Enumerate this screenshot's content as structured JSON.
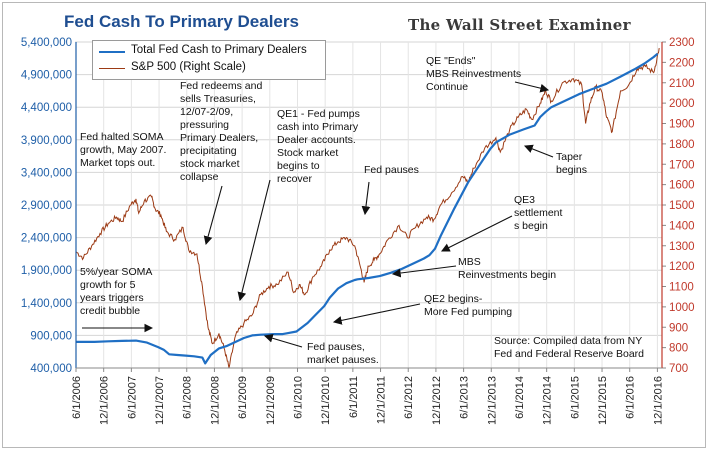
{
  "brand_text": "The Wall Street Examiner",
  "chart_data": {
    "type": "line",
    "title": "Fed Cash To Primary Dealers",
    "grid": true,
    "legend_position": "top-left",
    "x_tick_labels": [
      "6/1/2006",
      "12/1/2006",
      "6/1/2007",
      "12/1/2007",
      "6/1/2008",
      "12/1/2008",
      "6/1/2009",
      "12/1/2009",
      "6/1/2010",
      "12/1/2010",
      "6/1/2011",
      "12/1/2011",
      "6/1/2012",
      "12/1/2012",
      "6/1/2013",
      "12/1/2013",
      "6/1/2014",
      "12/1/2014",
      "6/1/2015",
      "12/1/2015",
      "6/1/2016",
      "12/1/2016"
    ],
    "x_range": [
      2006.417,
      2017.0
    ],
    "y_left": {
      "range": [
        400000,
        5400000
      ],
      "ticks": [
        400000,
        900000,
        1400000,
        1900000,
        2400000,
        2900000,
        3400000,
        3900000,
        4400000,
        4900000,
        5400000
      ],
      "tick_labels": [
        "400,000",
        "900,000",
        "1,400,000",
        "1,900,000",
        "2,400,000",
        "2,900,000",
        "3,400,000",
        "3,900,000",
        "4,400,000",
        "4,900,000",
        "5,400,000"
      ],
      "color": "#1f5fa8"
    },
    "y_right": {
      "range": [
        700,
        2300
      ],
      "ticks": [
        700,
        800,
        900,
        1000,
        1100,
        1200,
        1300,
        1400,
        1500,
        1600,
        1700,
        1800,
        1900,
        2000,
        2100,
        2200,
        2300
      ],
      "tick_labels": [
        "700",
        "800",
        "900",
        "1000",
        "1100",
        "1200",
        "1300",
        "1400",
        "1500",
        "1600",
        "1700",
        "1800",
        "1900",
        "2000",
        "2100",
        "2200",
        "2300"
      ],
      "color": "#c0392b"
    },
    "series": [
      {
        "name": "Total Fed Cash to Primary Dealers",
        "axis": "left",
        "color": "#1f6fc4",
        "x": [
          2006.42,
          2006.75,
          2007.0,
          2007.25,
          2007.5,
          2007.7,
          2007.9,
          2008.0,
          2008.1,
          2008.25,
          2008.4,
          2008.55,
          2008.7,
          2008.75,
          2008.85,
          2009.0,
          2009.15,
          2009.3,
          2009.45,
          2009.6,
          2009.75,
          2009.9,
          2010.0,
          2010.15,
          2010.25,
          2010.4,
          2010.6,
          2010.75,
          2010.9,
          2011.0,
          2011.15,
          2011.3,
          2011.45,
          2011.5,
          2011.7,
          2011.9,
          2012.1,
          2012.3,
          2012.5,
          2012.7,
          2012.8,
          2012.9,
          2013.0,
          2013.25,
          2013.5,
          2013.75,
          2013.9,
          2014.0,
          2014.25,
          2014.5,
          2014.7,
          2014.8,
          2014.9,
          2015.0,
          2015.25,
          2015.5,
          2015.75,
          2016.0,
          2016.25,
          2016.5,
          2016.7,
          2016.85,
          2016.92
        ],
        "values": [
          800000,
          800000,
          810000,
          815000,
          820000,
          790000,
          720000,
          680000,
          610000,
          600000,
          590000,
          580000,
          560000,
          470000,
          600000,
          700000,
          740000,
          800000,
          860000,
          900000,
          910000,
          915000,
          920000,
          920000,
          935000,
          960000,
          1090000,
          1220000,
          1350000,
          1480000,
          1620000,
          1700000,
          1750000,
          1760000,
          1780000,
          1810000,
          1860000,
          1920000,
          2000000,
          2080000,
          2130000,
          2230000,
          2420000,
          2850000,
          3250000,
          3570000,
          3760000,
          3860000,
          3980000,
          4060000,
          4120000,
          4250000,
          4330000,
          4400000,
          4500000,
          4600000,
          4680000,
          4760000,
          4870000,
          4980000,
          5080000,
          5170000,
          5220000
        ]
      },
      {
        "name": "S&P 500 (Right Scale)",
        "axis": "right",
        "color": "#9c3a14",
        "x": [
          2006.42,
          2006.55,
          2006.7,
          2006.85,
          2007.0,
          2007.15,
          2007.25,
          2007.4,
          2007.5,
          2007.55,
          2007.65,
          2007.78,
          2007.85,
          2007.95,
          2008.05,
          2008.2,
          2008.35,
          2008.45,
          2008.6,
          2008.7,
          2008.8,
          2008.88,
          2009.0,
          2009.1,
          2009.18,
          2009.3,
          2009.45,
          2009.6,
          2009.75,
          2009.9,
          2010.05,
          2010.25,
          2010.35,
          2010.45,
          2010.55,
          2010.7,
          2010.85,
          2011.0,
          2011.15,
          2011.3,
          2011.45,
          2011.55,
          2011.62,
          2011.7,
          2011.8,
          2011.9,
          2012.05,
          2012.25,
          2012.4,
          2012.55,
          2012.75,
          2012.88,
          2013.0,
          2013.2,
          2013.4,
          2013.5,
          2013.6,
          2013.8,
          2014.0,
          2014.08,
          2014.25,
          2014.4,
          2014.55,
          2014.65,
          2014.8,
          2014.9,
          2015.0,
          2015.2,
          2015.4,
          2015.55,
          2015.62,
          2015.7,
          2015.8,
          2015.92,
          2016.0,
          2016.1,
          2016.25,
          2016.4,
          2016.55,
          2016.7,
          2016.85,
          2016.95
        ],
        "values": [
          1270,
          1240,
          1300,
          1360,
          1410,
          1440,
          1420,
          1500,
          1530,
          1460,
          1520,
          1540,
          1480,
          1450,
          1370,
          1330,
          1390,
          1280,
          1260,
          1100,
          900,
          820,
          870,
          790,
          700,
          860,
          920,
          960,
          1060,
          1100,
          1110,
          1170,
          1070,
          1110,
          1060,
          1150,
          1200,
          1280,
          1320,
          1340,
          1300,
          1200,
          1120,
          1200,
          1230,
          1260,
          1330,
          1400,
          1340,
          1390,
          1440,
          1430,
          1500,
          1560,
          1640,
          1610,
          1680,
          1780,
          1830,
          1760,
          1870,
          1930,
          1970,
          1920,
          2000,
          2060,
          2010,
          2100,
          2120,
          2090,
          1900,
          2000,
          2080,
          2050,
          1930,
          1860,
          2060,
          2090,
          2170,
          2180,
          2150,
          2270
        ]
      }
    ],
    "annotations": [
      {
        "id": "halt",
        "text": [
          "Fed halted SOMA",
          "growth, May 2007.",
          "Market tops out."
        ]
      },
      {
        "id": "redeem",
        "text": [
          "Fed redeems and",
          "sells Treasuries,",
          "12/07-2/09,",
          "pressuring",
          "Primary Dealers,",
          "precipitating",
          "stock market",
          "collapse"
        ]
      },
      {
        "id": "qe1",
        "text": [
          "QE1 - Fed pumps",
          "cash into Primary",
          "Dealer accounts.",
          "Stock market",
          "begins to",
          "recover"
        ]
      },
      {
        "id": "fedpause1",
        "text": [
          "Fed pauses"
        ]
      },
      {
        "id": "qeends",
        "text": [
          "QE \"Ends\"",
          "MBS Reinvestments",
          "Continue"
        ]
      },
      {
        "id": "taper",
        "text": [
          "Taper",
          "begins"
        ]
      },
      {
        "id": "qe3",
        "text": [
          "QE3",
          "settlement",
          "s begin"
        ]
      },
      {
        "id": "mbs",
        "text": [
          "MBS",
          "Reinvestments begin"
        ]
      },
      {
        "id": "qe2",
        "text": [
          "QE2 begins-",
          "More Fed pumping"
        ]
      },
      {
        "id": "soma5",
        "text": [
          "5%/year SOMA",
          "growth for 5",
          "years triggers",
          "credit bubble"
        ]
      },
      {
        "id": "fedpause2",
        "text": [
          "Fed pauses,",
          "market pauses."
        ]
      },
      {
        "id": "source",
        "text": [
          "Source: Compiled data from NY",
          "Fed and Federal Reserve Board"
        ]
      }
    ]
  }
}
